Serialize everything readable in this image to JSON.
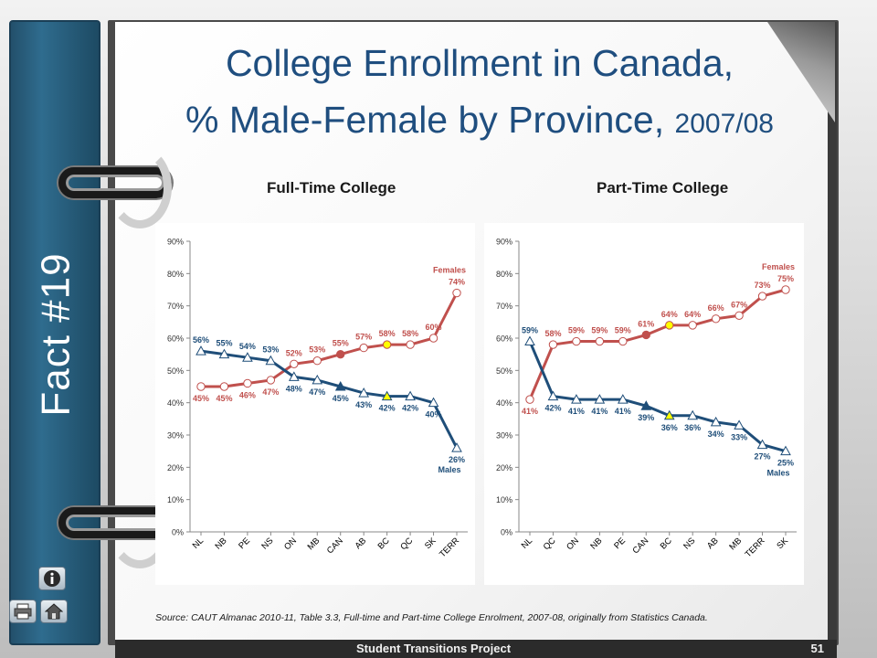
{
  "slide": {
    "fact_label": "Fact #19",
    "title_line1": "College Enrollment in Canada,",
    "title_line2": "% Male-Female by Province,",
    "title_year": "2007/08",
    "source": "Source:  CAUT Almanac 2010-11, Table 3.3, Full-time and Part-time College Enrolment, 2007-08, originally from Statistics Canada.",
    "footer_project": "Student Transitions Project",
    "footer_page": "51",
    "nav_icons": [
      "info-icon",
      "print-icon",
      "home-icon"
    ]
  },
  "colors": {
    "title": "#1f4e7f",
    "females": "#c0504d",
    "males": "#1f4e79",
    "highlight": "#ffff00",
    "spine": "#2f6c8e"
  },
  "chart_data": [
    {
      "type": "line",
      "title": "Full-Time College",
      "categories": [
        "NL",
        "NB",
        "PE",
        "NS",
        "ON",
        "MB",
        "CAN",
        "AB",
        "BC",
        "QC",
        "SK",
        "TERR"
      ],
      "ylim": [
        0,
        90
      ],
      "yticks": [
        "0%",
        "10%",
        "20%",
        "30%",
        "40%",
        "50%",
        "60%",
        "70%",
        "80%",
        "90%"
      ],
      "grid": false,
      "series": [
        {
          "name": "Females",
          "values": [
            45,
            45,
            46,
            47,
            52,
            53,
            55,
            57,
            58,
            58,
            60,
            74
          ],
          "labels": [
            "45%",
            "45%",
            "46%",
            "47%",
            "52%",
            "53%",
            "55%",
            "57%",
            "58%",
            "58%",
            "60%",
            "74%"
          ],
          "end_label": "Females"
        },
        {
          "name": "Males",
          "values": [
            56,
            55,
            54,
            53,
            48,
            47,
            45,
            43,
            42,
            42,
            40,
            26
          ],
          "labels": [
            "56%",
            "55%",
            "54%",
            "53%",
            "48%",
            "47%",
            "45%",
            "43%",
            "42%",
            "42%",
            "40%",
            "26%"
          ],
          "end_label": "Males"
        }
      ],
      "highlight_points": {
        "CAN": "filled",
        "BC": "yellow"
      }
    },
    {
      "type": "line",
      "title": "Part-Time College",
      "categories": [
        "NL",
        "QC",
        "ON",
        "NB",
        "PE",
        "CAN",
        "BC",
        "NS",
        "AB",
        "MB",
        "TERR",
        "SK"
      ],
      "ylim": [
        0,
        90
      ],
      "yticks": [
        "0%",
        "10%",
        "20%",
        "30%",
        "40%",
        "50%",
        "60%",
        "70%",
        "80%",
        "90%"
      ],
      "grid": false,
      "series": [
        {
          "name": "Females",
          "values": [
            41,
            58,
            59,
            59,
            59,
            61,
            64,
            64,
            66,
            67,
            73,
            75
          ],
          "labels": [
            "41%",
            "58%",
            "59%",
            "59%",
            "59%",
            "61%",
            "64%",
            "64%",
            "66%",
            "67%",
            "73%",
            "75%"
          ],
          "end_label": "Females"
        },
        {
          "name": "Males",
          "values": [
            59,
            42,
            41,
            41,
            41,
            39,
            36,
            36,
            34,
            33,
            27,
            25
          ],
          "labels": [
            "59%",
            "42%",
            "41%",
            "41%",
            "41%",
            "39%",
            "36%",
            "36%",
            "34%",
            "33%",
            "27%",
            "25%"
          ],
          "end_label": "Males"
        }
      ],
      "highlight_points": {
        "CAN": "filled",
        "BC": "yellow"
      }
    }
  ]
}
